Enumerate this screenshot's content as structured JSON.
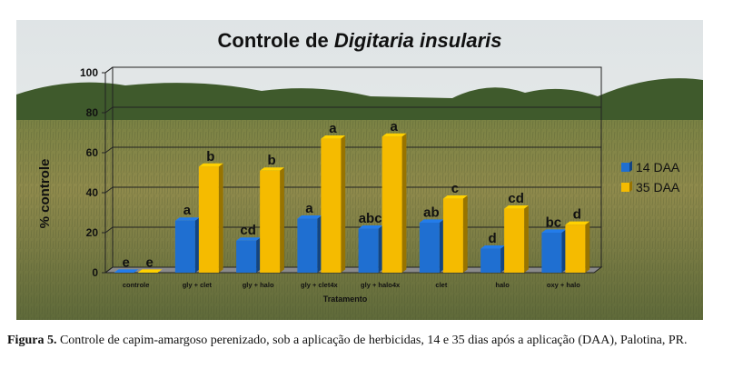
{
  "chart_data": {
    "type": "bar",
    "title": {
      "prefix": "Controle de ",
      "italic": "Digitaria insularis"
    },
    "ylabel": "% controle",
    "xlabel": "Tratamento",
    "ylim": [
      0,
      100
    ],
    "yticks": [
      0,
      20,
      40,
      60,
      80,
      100
    ],
    "grid": true,
    "legend_position": "right",
    "categories": [
      "controle",
      "gly + clet",
      "gly + halo",
      "gly + clet4x",
      "gly + halo4x",
      "clet",
      "halo",
      "oxy + halo"
    ],
    "series": [
      {
        "name": "14 DAA",
        "color": "#1f6fd1",
        "values": [
          0,
          26,
          16,
          27,
          22,
          25,
          12,
          20
        ],
        "labels": [
          "e",
          "a",
          "cd",
          "a",
          "abc",
          "ab",
          "d",
          "bc"
        ]
      },
      {
        "name": "35 DAA",
        "color": "#f5bb00",
        "values": [
          0,
          53,
          51,
          67,
          68,
          37,
          32,
          24
        ],
        "labels": [
          "e",
          "b",
          "b",
          "a",
          "a",
          "c",
          "cd",
          "d"
        ]
      }
    ]
  },
  "caption": {
    "label": "Figura 5.",
    "text": " Controle de capim-amargoso perenizado, sob a aplicação de herbicidas, 14 e 35 dias após a aplicação (DAA), Palotina, PR."
  }
}
